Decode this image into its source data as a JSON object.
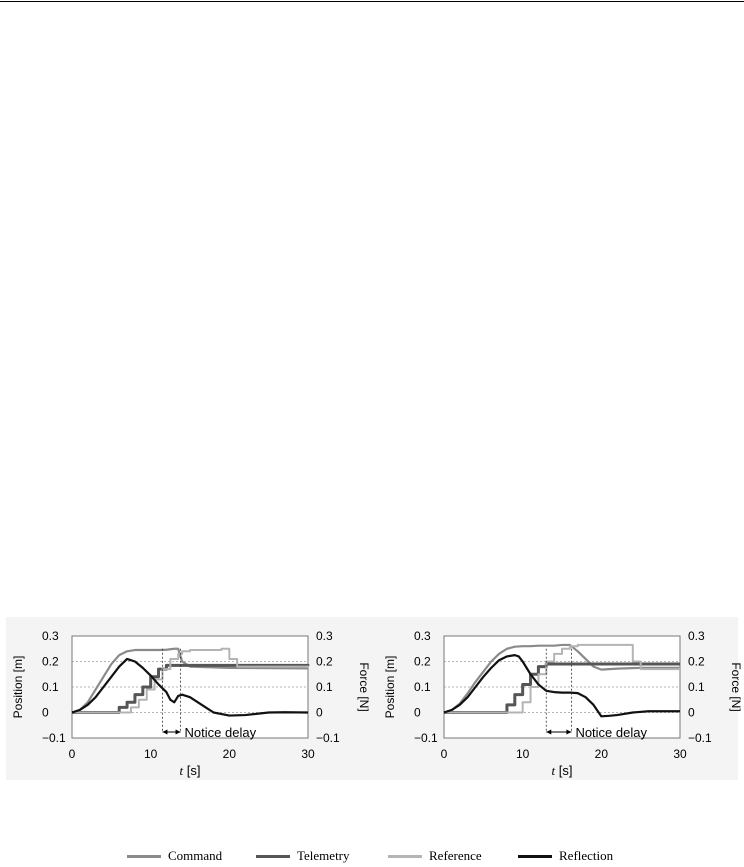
{
  "chart_data": [
    {
      "type": "line",
      "xlabel_var": "t",
      "xlabel_unit": "[s]",
      "ylabel_left": "Position [m]",
      "ylabel_right": "Force [N]",
      "xlim": [
        0,
        30
      ],
      "ylim": [
        -0.1,
        0.3
      ],
      "xticks": [
        "0",
        "10",
        "20",
        "30"
      ],
      "yticks": [
        "-0.1",
        "0",
        "0.1",
        "0.2",
        "0.3"
      ],
      "grid": true,
      "annotation": {
        "text": "Notice delay",
        "from": 11.5,
        "to": 13.8
      },
      "series": [
        {
          "name": "Command",
          "color": "#8a8a8a",
          "width": 2.2,
          "x": [
            0,
            1,
            2,
            3,
            4,
            5,
            6,
            7,
            8,
            9,
            10,
            11,
            12,
            13,
            13.5,
            14,
            15,
            20,
            30
          ],
          "y": [
            0,
            0.01,
            0.04,
            0.09,
            0.14,
            0.19,
            0.225,
            0.24,
            0.245,
            0.245,
            0.245,
            0.245,
            0.246,
            0.25,
            0.25,
            0.2,
            0.18,
            0.175,
            0.173
          ]
        },
        {
          "name": "Telemetry",
          "color": "#555555",
          "width": 3,
          "step": true,
          "x": [
            0,
            5,
            6,
            7,
            8,
            9,
            10,
            11,
            12,
            13,
            30
          ],
          "y": [
            0,
            0,
            0.02,
            0.04,
            0.07,
            0.1,
            0.14,
            0.17,
            0.185,
            0.185,
            0.183
          ]
        },
        {
          "name": "Reference",
          "color": "#b4b4b4",
          "width": 2,
          "step": true,
          "x": [
            0,
            6.5,
            7.5,
            8.5,
            9.5,
            10.5,
            11.5,
            12.5,
            13.5,
            14,
            15,
            19,
            20,
            21,
            30
          ],
          "y": [
            0,
            0,
            0.02,
            0.05,
            0.09,
            0.13,
            0.17,
            0.21,
            0.23,
            0.24,
            0.245,
            0.25,
            0.21,
            0.18,
            0.175
          ]
        },
        {
          "name": "Reflection",
          "color": "#111111",
          "width": 2.2,
          "x": [
            0,
            1,
            2,
            3,
            4,
            5,
            6,
            7,
            8,
            9,
            10,
            11,
            12,
            12.5,
            13,
            13.5,
            14,
            15,
            16,
            17,
            18,
            20,
            22,
            25,
            27,
            30
          ],
          "y": [
            0,
            0.01,
            0.03,
            0.06,
            0.1,
            0.14,
            0.18,
            0.21,
            0.2,
            0.175,
            0.145,
            0.11,
            0.08,
            0.05,
            0.04,
            0.065,
            0.07,
            0.06,
            0.04,
            0.02,
            0,
            -0.012,
            -0.01,
            0,
            0.001,
            0
          ]
        }
      ]
    },
    {
      "type": "line",
      "xlabel_var": "t",
      "xlabel_unit": "[s]",
      "ylabel_left": "Position [m]",
      "ylabel_right": "Force [N]",
      "xlim": [
        0,
        30
      ],
      "ylim": [
        -0.1,
        0.3
      ],
      "xticks": [
        "0",
        "10",
        "20",
        "30"
      ],
      "yticks": [
        "-0.1",
        "0",
        "0.1",
        "0.2",
        "0.3"
      ],
      "grid": true,
      "annotation": {
        "text": "Notice delay",
        "from": 13,
        "to": 16.2
      },
      "series": [
        {
          "name": "Command",
          "color": "#8a8a8a",
          "width": 2.2,
          "x": [
            0,
            1,
            2,
            3,
            4,
            5,
            6,
            7,
            8,
            9,
            10,
            11,
            12,
            13,
            14,
            15,
            16,
            17,
            18,
            19,
            20,
            22,
            25,
            30
          ],
          "y": [
            0,
            0.01,
            0.035,
            0.075,
            0.12,
            0.16,
            0.2,
            0.23,
            0.25,
            0.258,
            0.26,
            0.26,
            0.262,
            0.262,
            0.262,
            0.265,
            0.265,
            0.24,
            0.21,
            0.18,
            0.168,
            0.172,
            0.175,
            0.175
          ]
        },
        {
          "name": "Telemetry",
          "color": "#555555",
          "width": 3,
          "step": true,
          "x": [
            0,
            7,
            8,
            9,
            10,
            11,
            12,
            13,
            14,
            30
          ],
          "y": [
            0,
            0,
            0.03,
            0.07,
            0.11,
            0.15,
            0.18,
            0.19,
            0.19,
            0.19
          ]
        },
        {
          "name": "Reference",
          "color": "#b4b4b4",
          "width": 2,
          "step": true,
          "x": [
            0,
            9,
            10,
            11,
            12,
            13,
            14,
            15,
            16,
            17,
            23,
            24,
            25,
            30
          ],
          "y": [
            0,
            0,
            0.04,
            0.1,
            0.15,
            0.2,
            0.23,
            0.25,
            0.26,
            0.265,
            0.265,
            0.2,
            0.17,
            0.175
          ]
        },
        {
          "name": "Reflection",
          "color": "#111111",
          "width": 2.2,
          "x": [
            0,
            1,
            2,
            3,
            4,
            5,
            6,
            7,
            8,
            9,
            9.5,
            10,
            11,
            12,
            13,
            14,
            15,
            16,
            17,
            18,
            19,
            20,
            21,
            22,
            24,
            26,
            30
          ],
          "y": [
            0,
            0.01,
            0.03,
            0.06,
            0.1,
            0.14,
            0.175,
            0.205,
            0.22,
            0.225,
            0.22,
            0.2,
            0.15,
            0.11,
            0.085,
            0.08,
            0.078,
            0.078,
            0.076,
            0.06,
            0.03,
            -0.015,
            -0.013,
            -0.01,
            0,
            0.005,
            0.005
          ]
        }
      ]
    }
  ],
  "legend": [
    {
      "label": "Command",
      "color": "#8a8a8a"
    },
    {
      "label": "Telemetry",
      "color": "#555555"
    },
    {
      "label": "Reference",
      "color": "#b4b4b4"
    },
    {
      "label": "Reflection",
      "color": "#111111"
    }
  ]
}
